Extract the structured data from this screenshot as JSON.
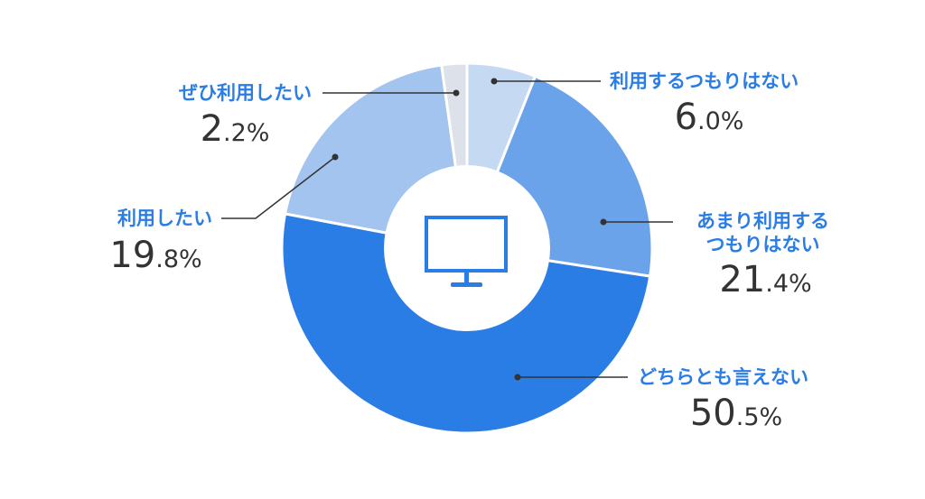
{
  "chart_data": {
    "type": "pie",
    "donut": true,
    "center_icon": "monitor-icon",
    "start": "top",
    "direction": "clockwise",
    "slices": [
      {
        "label": "利用するつもりはない",
        "value": 6.0,
        "color": "#c5d9f2"
      },
      {
        "label": "あまり利用するつもりはない",
        "label_lines": [
          "あまり利用する",
          "つもりはない"
        ],
        "value": 21.4,
        "color": "#6aa3ea"
      },
      {
        "label": "どちらとも言えない",
        "value": 50.5,
        "color": "#2b7de6"
      },
      {
        "label": "利用したい",
        "value": 19.8,
        "color": "#a3c4ee"
      },
      {
        "label": "ぜひ利用したい",
        "value": 2.2,
        "color": "#dde2ea"
      }
    ],
    "unit": "%",
    "label_color": "#2b7de6",
    "value_color": "#333333"
  }
}
